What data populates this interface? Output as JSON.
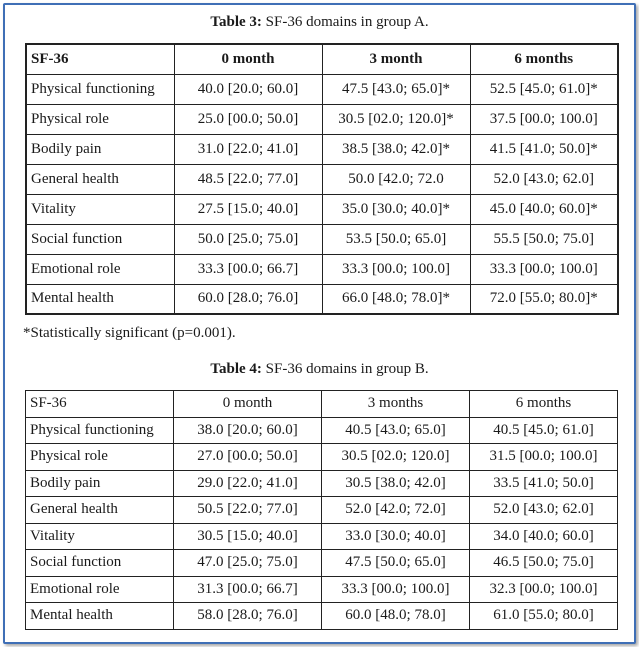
{
  "table3": {
    "caption_label": "Table 3:",
    "caption_text": " SF-36 domains in group A.",
    "headers": [
      "SF-36",
      "0 month",
      "3 month",
      "6 months"
    ],
    "rows": [
      [
        "Physical functioning",
        "40.0 [20.0; 60.0]",
        "47.5 [43.0; 65.0]*",
        "52.5 [45.0; 61.0]*"
      ],
      [
        "Physical role",
        "25.0 [00.0; 50.0]",
        "30.5 [02.0; 120.0]*",
        "37.5 [00.0; 100.0]"
      ],
      [
        "Bodily pain",
        "31.0 [22.0; 41.0]",
        "38.5 [38.0; 42.0]*",
        "41.5 [41.0; 50.0]*"
      ],
      [
        "General health",
        "48.5 [22.0; 77.0]",
        "50.0 [42.0; 72.0",
        "52.0 [43.0; 62.0]"
      ],
      [
        "Vitality",
        "27.5 [15.0; 40.0]",
        "35.0 [30.0; 40.0]*",
        "45.0 [40.0; 60.0]*"
      ],
      [
        "Social function",
        "50.0 [25.0; 75.0]",
        "53.5 [50.0; 65.0]",
        "55.5 [50.0; 75.0]"
      ],
      [
        "Emotional role",
        "33.3 [00.0; 66.7]",
        "33.3 [00.0; 100.0]",
        "33.3 [00.0; 100.0]"
      ],
      [
        "Mental health",
        "60.0 [28.0; 76.0]",
        "66.0 [48.0; 78.0]*",
        "72.0 [55.0; 80.0]*"
      ]
    ],
    "footnote": "*Statistically significant (p=0.001)."
  },
  "table4": {
    "caption_label": "Table 4:",
    "caption_text": " SF-36 domains in group B.",
    "headers": [
      "SF-36",
      "0 month",
      "3 months",
      "6 months"
    ],
    "rows": [
      [
        "Physical functioning",
        "38.0 [20.0; 60.0]",
        "40.5 [43.0; 65.0]",
        "40.5 [45.0; 61.0]"
      ],
      [
        "Physical role",
        "27.0 [00.0; 50.0]",
        "30.5 [02.0; 120.0]",
        "31.5 [00.0; 100.0]"
      ],
      [
        "Bodily pain",
        "29.0 [22.0; 41.0]",
        "30.5 [38.0; 42.0]",
        "33.5 [41.0; 50.0]"
      ],
      [
        "General health",
        "50.5 [22.0; 77.0]",
        "52.0 [42.0; 72.0]",
        "52.0 [43.0; 62.0]"
      ],
      [
        "Vitality",
        "30.5 [15.0; 40.0]",
        "33.0 [30.0; 40.0]",
        "34.0 [40.0; 60.0]"
      ],
      [
        "Social function",
        "47.0 [25.0; 75.0]",
        "47.5 [50.0; 65.0]",
        "46.5 [50.0; 75.0]"
      ],
      [
        "Emotional role",
        "31.3 [00.0; 66.7]",
        "33.3 [00.0; 100.0]",
        "32.3 [00.0; 100.0]"
      ],
      [
        "Mental health",
        "58.0 [28.0; 76.0]",
        "60.0 [48.0; 78.0]",
        "61.0 [55.0; 80.0]"
      ]
    ]
  }
}
